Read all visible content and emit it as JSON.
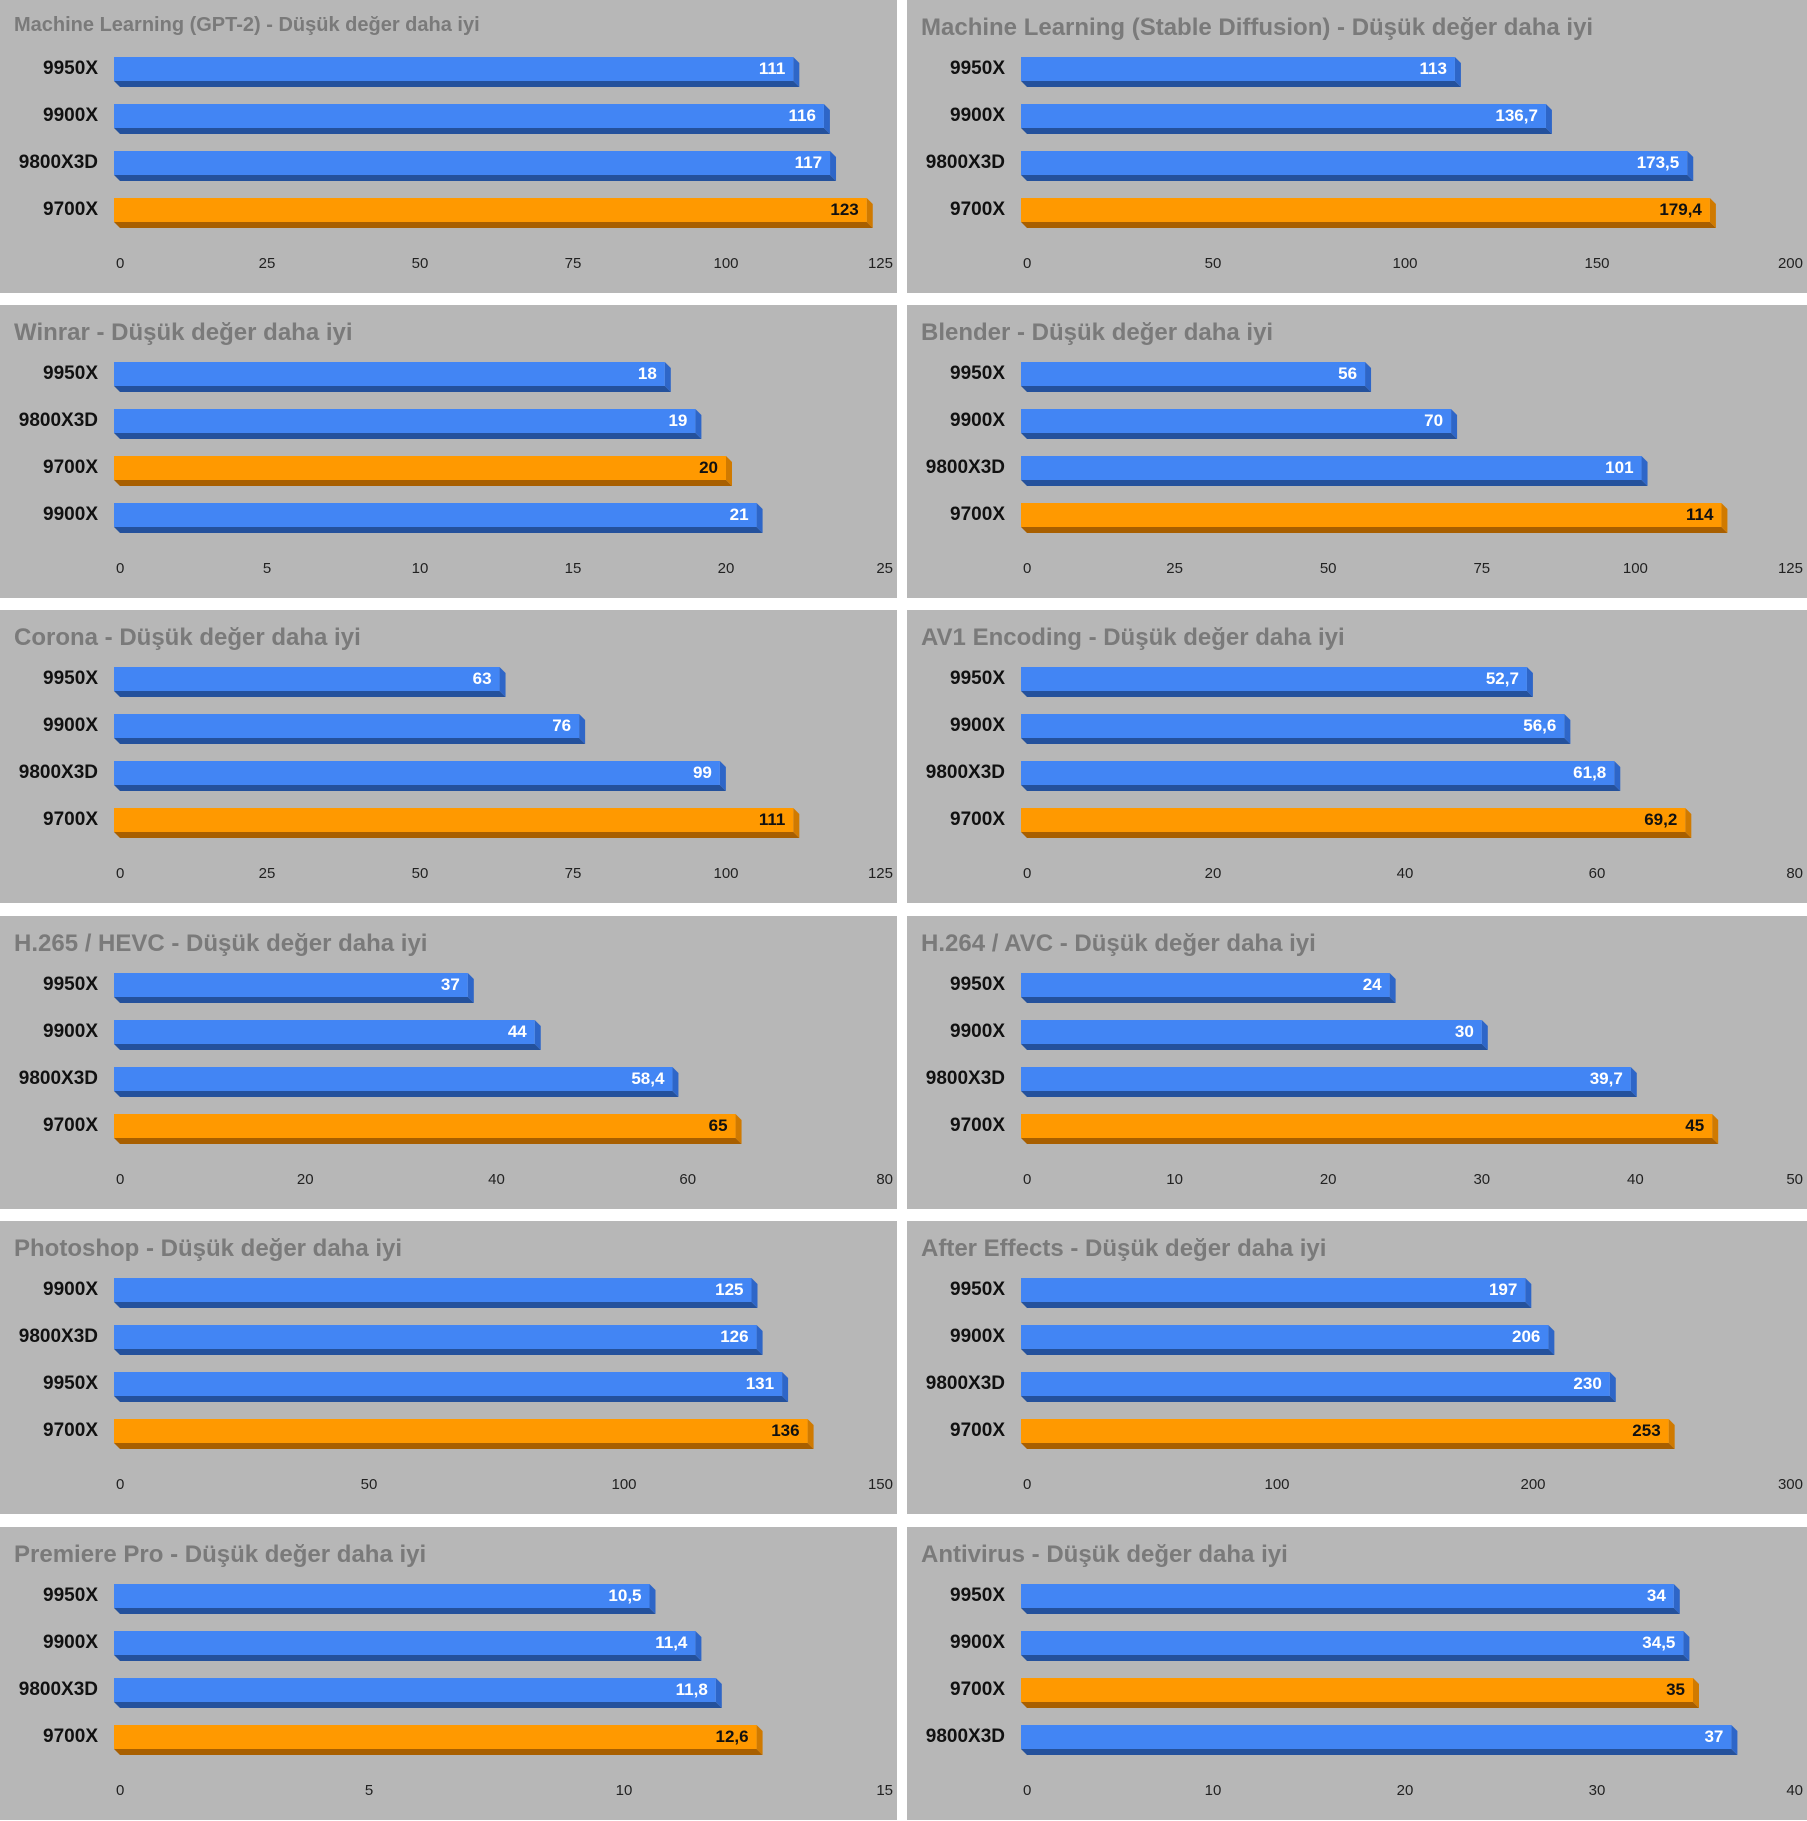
{
  "colors": {
    "panel_bg": "#b7b7b7",
    "blue": "#4285f4",
    "blue_side": "#2e66c8",
    "blue_bottom": "#24519c",
    "orange": "#ff9900",
    "orange_side": "#d07a00",
    "orange_bottom": "#a85f00",
    "title_text": "#7a7a7a",
    "label_text": "#111111"
  },
  "chart_data": [
    {
      "type": "bar",
      "orientation": "horizontal",
      "title": "Machine Learning (GPT-2) - Düşük değer daha iyi",
      "categories": [
        "9950X",
        "9900X",
        "9800X3D",
        "9700X"
      ],
      "values": [
        111,
        116,
        117,
        123
      ],
      "value_labels": [
        "111",
        "116",
        "117",
        "123"
      ],
      "highlight": [
        false,
        false,
        false,
        true
      ],
      "xlim": [
        0,
        125
      ],
      "ticks": [
        0,
        25,
        50,
        75,
        100,
        125
      ],
      "xlabel": "",
      "ylabel": ""
    },
    {
      "type": "bar",
      "orientation": "horizontal",
      "title": "Machine Learning (Stable Diffusion) - Düşük değer daha iyi",
      "categories": [
        "9950X",
        "9900X",
        "9800X3D",
        "9700X"
      ],
      "values": [
        113,
        136.7,
        173.5,
        179.4
      ],
      "value_labels": [
        "113",
        "136,7",
        "173,5",
        "179,4"
      ],
      "highlight": [
        false,
        false,
        false,
        true
      ],
      "xlim": [
        0,
        200
      ],
      "ticks": [
        0,
        50,
        100,
        150,
        200
      ],
      "xlabel": "",
      "ylabel": ""
    },
    {
      "type": "bar",
      "orientation": "horizontal",
      "title": "Winrar - Düşük değer daha iyi",
      "categories": [
        "9950X",
        "9800X3D",
        "9700X",
        "9900X"
      ],
      "values": [
        18,
        19,
        20,
        21
      ],
      "value_labels": [
        "18",
        "19",
        "20",
        "21"
      ],
      "highlight": [
        false,
        false,
        true,
        false
      ],
      "xlim": [
        0,
        25
      ],
      "ticks": [
        0,
        5,
        10,
        15,
        20,
        25
      ],
      "xlabel": "",
      "ylabel": ""
    },
    {
      "type": "bar",
      "orientation": "horizontal",
      "title": "Blender - Düşük değer daha iyi",
      "categories": [
        "9950X",
        "9900X",
        "9800X3D",
        "9700X"
      ],
      "values": [
        56,
        70,
        101,
        114
      ],
      "value_labels": [
        "56",
        "70",
        "101",
        "114"
      ],
      "highlight": [
        false,
        false,
        false,
        true
      ],
      "xlim": [
        0,
        125
      ],
      "ticks": [
        0,
        25,
        50,
        75,
        100,
        125
      ],
      "xlabel": "",
      "ylabel": ""
    },
    {
      "type": "bar",
      "orientation": "horizontal",
      "title": "Corona - Düşük değer daha iyi",
      "categories": [
        "9950X",
        "9900X",
        "9800X3D",
        "9700X"
      ],
      "values": [
        63,
        76,
        99,
        111
      ],
      "value_labels": [
        "63",
        "76",
        "99",
        "111"
      ],
      "highlight": [
        false,
        false,
        false,
        true
      ],
      "xlim": [
        0,
        125
      ],
      "ticks": [
        0,
        25,
        50,
        75,
        100,
        125
      ],
      "xlabel": "",
      "ylabel": ""
    },
    {
      "type": "bar",
      "orientation": "horizontal",
      "title": "AV1 Encoding - Düşük değer daha iyi",
      "categories": [
        "9950X",
        "9900X",
        "9800X3D",
        "9700X"
      ],
      "values": [
        52.7,
        56.6,
        61.8,
        69.2
      ],
      "value_labels": [
        "52,7",
        "56,6",
        "61,8",
        "69,2"
      ],
      "highlight": [
        false,
        false,
        false,
        true
      ],
      "xlim": [
        0,
        80
      ],
      "ticks": [
        0,
        20,
        40,
        60,
        80
      ],
      "xlabel": "",
      "ylabel": ""
    },
    {
      "type": "bar",
      "orientation": "horizontal",
      "title": "H.265 / HEVC - Düşük değer daha iyi",
      "categories": [
        "9950X",
        "9900X",
        "9800X3D",
        "9700X"
      ],
      "values": [
        37,
        44,
        58.4,
        65
      ],
      "value_labels": [
        "37",
        "44",
        "58,4",
        "65"
      ],
      "highlight": [
        false,
        false,
        false,
        true
      ],
      "xlim": [
        0,
        80
      ],
      "ticks": [
        0,
        20,
        40,
        60,
        80
      ],
      "xlabel": "",
      "ylabel": ""
    },
    {
      "type": "bar",
      "orientation": "horizontal",
      "title": "H.264 / AVC - Düşük değer daha iyi",
      "categories": [
        "9950X",
        "9900X",
        "9800X3D",
        "9700X"
      ],
      "values": [
        24,
        30,
        39.7,
        45
      ],
      "value_labels": [
        "24",
        "30",
        "39,7",
        "45"
      ],
      "highlight": [
        false,
        false,
        false,
        true
      ],
      "xlim": [
        0,
        50
      ],
      "ticks": [
        0,
        10,
        20,
        30,
        40,
        50
      ],
      "xlabel": "",
      "ylabel": ""
    },
    {
      "type": "bar",
      "orientation": "horizontal",
      "title": "Photoshop - Düşük değer daha iyi",
      "categories": [
        "9900X",
        "9800X3D",
        "9950X",
        "9700X"
      ],
      "values": [
        125,
        126,
        131,
        136
      ],
      "value_labels": [
        "125",
        "126",
        "131",
        "136"
      ],
      "highlight": [
        false,
        false,
        false,
        true
      ],
      "xlim": [
        0,
        150
      ],
      "ticks": [
        0,
        50,
        100,
        150
      ],
      "xlabel": "",
      "ylabel": ""
    },
    {
      "type": "bar",
      "orientation": "horizontal",
      "title": "After Effects - Düşük değer daha iyi",
      "categories": [
        "9950X",
        "9900X",
        "9800X3D",
        "9700X"
      ],
      "values": [
        197,
        206,
        230,
        253
      ],
      "value_labels": [
        "197",
        "206",
        "230",
        "253"
      ],
      "highlight": [
        false,
        false,
        false,
        true
      ],
      "xlim": [
        0,
        300
      ],
      "ticks": [
        0,
        100,
        200,
        300
      ],
      "xlabel": "",
      "ylabel": ""
    },
    {
      "type": "bar",
      "orientation": "horizontal",
      "title": "Premiere Pro - Düşük değer daha iyi",
      "categories": [
        "9950X",
        "9900X",
        "9800X3D",
        "9700X"
      ],
      "values": [
        10.5,
        11.4,
        11.8,
        12.6
      ],
      "value_labels": [
        "10,5",
        "11,4",
        "11,8",
        "12,6"
      ],
      "highlight": [
        false,
        false,
        false,
        true
      ],
      "xlim": [
        0,
        15
      ],
      "ticks": [
        0,
        5,
        10,
        15
      ],
      "xlabel": "",
      "ylabel": ""
    },
    {
      "type": "bar",
      "orientation": "horizontal",
      "title": "Antivirus - Düşük değer daha iyi",
      "categories": [
        "9950X",
        "9900X",
        "9700X",
        "9800X3D"
      ],
      "values": [
        34,
        34.5,
        35,
        37
      ],
      "value_labels": [
        "34",
        "34,5",
        "35",
        "37"
      ],
      "highlight": [
        false,
        false,
        true,
        false
      ],
      "xlim": [
        0,
        40
      ],
      "ticks": [
        0,
        10,
        20,
        30,
        40
      ],
      "xlabel": "",
      "ylabel": ""
    }
  ]
}
